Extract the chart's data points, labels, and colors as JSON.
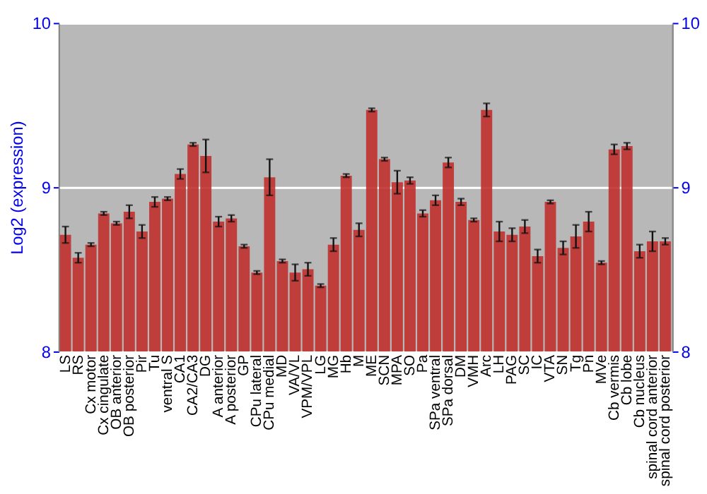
{
  "chart_data": {
    "type": "bar",
    "ylabel": "Log2 (expression)",
    "categories": [
      "LS",
      "RS",
      "Cx motor",
      "Cx cingulate",
      "OB anterior",
      "OB posterior",
      "Pir",
      "Tu",
      "ventral S",
      "CA1",
      "CA2/CA3",
      "DG",
      "A anterior",
      "A posterior",
      "GP",
      "CPu lateral",
      "CPu medial",
      "MD",
      "VA/VL",
      "VPM/VPL",
      "LG",
      "MG",
      "Hb",
      "M",
      "ME",
      "SCN",
      "MPA",
      "SO",
      "Pa",
      "SPa ventral",
      "SPa dorsal",
      "DM",
      "VMH",
      "Arc",
      "LH",
      "PAG",
      "SC",
      "IC",
      "VTA",
      "SN",
      "Tg",
      "Pn",
      "MVe",
      "Cb vermis",
      "Cb lobe",
      "Cb nucleus",
      "spinal cord anterior",
      "spinal cord posterior"
    ],
    "values": [
      8.71,
      8.57,
      8.65,
      8.84,
      8.78,
      8.85,
      8.73,
      8.91,
      8.93,
      9.08,
      9.26,
      9.19,
      8.79,
      8.81,
      8.64,
      8.48,
      9.06,
      8.55,
      8.48,
      8.5,
      8.4,
      8.65,
      9.07,
      8.74,
      9.47,
      9.17,
      9.03,
      9.04,
      8.84,
      8.92,
      9.15,
      8.91,
      8.8,
      9.47,
      8.73,
      8.71,
      8.76,
      8.58,
      8.91,
      8.63,
      8.7,
      8.79,
      8.54,
      9.23,
      9.25,
      8.61,
      8.67,
      8.67
    ],
    "errors": [
      0.05,
      0.03,
      0.01,
      0.01,
      0.01,
      0.04,
      0.04,
      0.03,
      0.01,
      0.03,
      0.01,
      0.1,
      0.03,
      0.02,
      0.01,
      0.01,
      0.11,
      0.01,
      0.05,
      0.04,
      0.01,
      0.04,
      0.01,
      0.04,
      0.01,
      0.01,
      0.07,
      0.02,
      0.02,
      0.03,
      0.03,
      0.02,
      0.01,
      0.04,
      0.06,
      0.04,
      0.04,
      0.04,
      0.01,
      0.04,
      0.07,
      0.06,
      0.01,
      0.03,
      0.02,
      0.04,
      0.06,
      0.02
    ],
    "color": "#c0302c",
    "ylim": [
      8,
      10
    ],
    "yticks": [
      8,
      9,
      10
    ],
    "y2lim": [
      8,
      10
    ],
    "y2ticks": [
      8,
      9,
      10
    ],
    "grid": "y"
  }
}
